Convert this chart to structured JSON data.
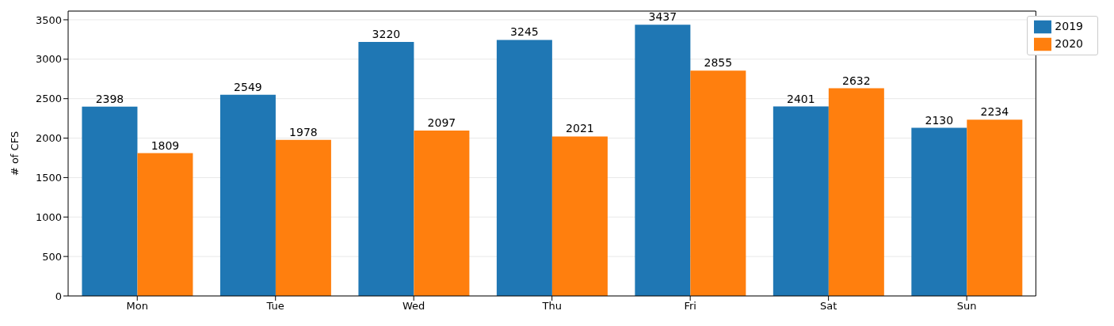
{
  "chart_data": {
    "type": "bar",
    "ylabel": "# of CFS",
    "categories": [
      "Mon",
      "Tue",
      "Wed",
      "Thu",
      "Fri",
      "Sat",
      "Sun"
    ],
    "series": [
      {
        "name": "2019",
        "color": "#1f77b4",
        "values": [
          2398,
          2549,
          3220,
          3245,
          3437,
          2401,
          2130
        ]
      },
      {
        "name": "2020",
        "color": "#ff7f0e",
        "values": [
          1809,
          1978,
          2097,
          2021,
          2855,
          2632,
          2234
        ]
      }
    ],
    "ylim": [
      0,
      3610
    ],
    "yticks": [
      0,
      500,
      1000,
      1500,
      2000,
      2500,
      3000,
      3500
    ],
    "grid": "y",
    "legend": "top right",
    "data_labels": true
  }
}
